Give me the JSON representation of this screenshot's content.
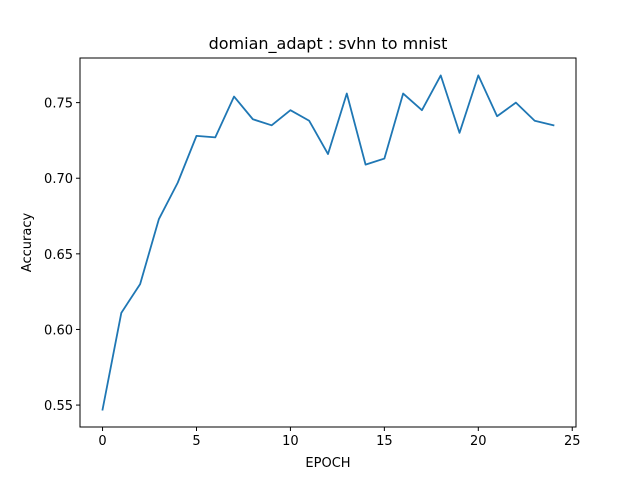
{
  "chart_data": {
    "type": "line",
    "title": "domian_adapt : svhn to mnist",
    "xlabel": "EPOCH",
    "ylabel": "Accuracy",
    "xlim": [
      -1.2,
      25.2
    ],
    "ylim": [
      0.5355,
      0.7795
    ],
    "x_ticks": [
      0,
      5,
      10,
      15,
      20,
      25
    ],
    "x_tick_labels": [
      "0",
      "5",
      "10",
      "15",
      "20",
      "25"
    ],
    "y_ticks": [
      0.55,
      0.6,
      0.65,
      0.7,
      0.75
    ],
    "y_tick_labels": [
      "0.55",
      "0.60",
      "0.65",
      "0.70",
      "0.75"
    ],
    "grid": false,
    "series": [
      {
        "color": "#1f77b4",
        "x": [
          0,
          1,
          2,
          3,
          4,
          5,
          6,
          7,
          8,
          9,
          10,
          11,
          12,
          13,
          14,
          15,
          16,
          17,
          18,
          19,
          20,
          21,
          22,
          23,
          24
        ],
        "values": [
          0.547,
          0.611,
          0.63,
          0.673,
          0.697,
          0.728,
          0.727,
          0.754,
          0.739,
          0.735,
          0.745,
          0.738,
          0.716,
          0.756,
          0.709,
          0.713,
          0.756,
          0.745,
          0.768,
          0.73,
          0.768,
          0.741,
          0.75,
          0.738,
          0.735
        ]
      }
    ]
  }
}
